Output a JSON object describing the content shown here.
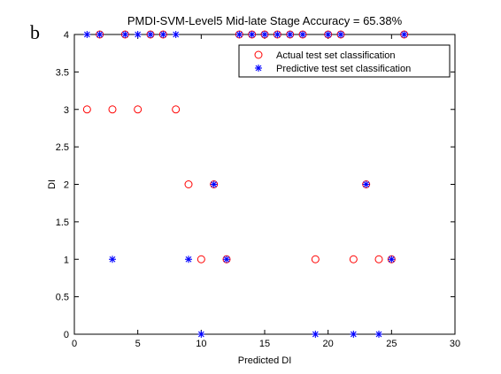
{
  "panel_label": "b",
  "chart_data": {
    "type": "scatter",
    "title": "PMDI-SVM-Level5 Mid-late Stage Accuracy = 65.38%",
    "xlabel": "Predicted DI",
    "ylabel": "DI",
    "xlim": [
      0,
      30
    ],
    "ylim": [
      0,
      4
    ],
    "x_ticks": [
      0,
      5,
      10,
      15,
      20,
      25,
      30
    ],
    "y_ticks": [
      0,
      0.5,
      1,
      1.5,
      2,
      2.5,
      3,
      3.5,
      4
    ],
    "legend_position": "top-right",
    "series": [
      {
        "name": "Actual test set classification",
        "marker": "circle",
        "color": "#ff0000",
        "x": [
          1,
          2,
          3,
          4,
          5,
          6,
          7,
          8,
          9,
          10,
          11,
          12,
          13,
          14,
          15,
          16,
          17,
          18,
          19,
          20,
          21,
          22,
          23,
          24,
          25,
          26
        ],
        "y": [
          3,
          4,
          3,
          4,
          3,
          4,
          4,
          3,
          2,
          1,
          2,
          1,
          4,
          4,
          4,
          4,
          4,
          4,
          1,
          4,
          4,
          1,
          2,
          1,
          1,
          4
        ]
      },
      {
        "name": "Predictive test set classification",
        "marker": "asterisk",
        "color": "#0000ff",
        "x": [
          1,
          2,
          3,
          4,
          5,
          6,
          7,
          8,
          9,
          10,
          11,
          12,
          13,
          14,
          15,
          16,
          17,
          18,
          19,
          20,
          21,
          22,
          23,
          24,
          25,
          26
        ],
        "y": [
          4,
          4,
          1,
          4,
          4,
          4,
          4,
          4,
          1,
          0,
          2,
          1,
          4,
          4,
          4,
          4,
          4,
          4,
          0,
          4,
          4,
          0,
          2,
          0,
          1,
          4
        ]
      }
    ]
  }
}
